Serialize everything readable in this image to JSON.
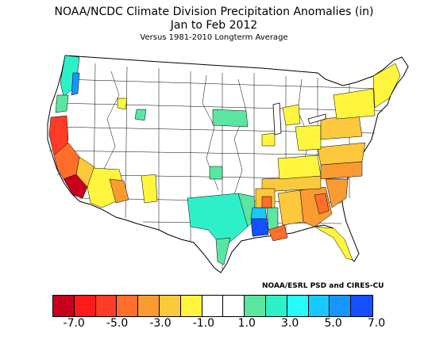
{
  "header": {
    "title": "NOAA/NCDC Climate Division Precipitation Anomalies (in)",
    "period": "Jan to Feb 2012",
    "baseline": "Versus 1981-2010 Longterm Average"
  },
  "credit": "NOAA/ESRL PSD and CIRES-CU",
  "legend": {
    "colors": [
      "#c8001e",
      "#ff1a1a",
      "#ff3c28",
      "#ff6e2a",
      "#fa9b32",
      "#fcc83c",
      "#fff53c",
      "#ffffff",
      "#ffffff",
      "#5ae6a0",
      "#2ef0c8",
      "#28fafa",
      "#18c8ff",
      "#1896ff",
      "#1450ff"
    ],
    "ticks": [
      "-7.0",
      "-5.0",
      "-3.0",
      "-1.0",
      "1.0",
      "3.0",
      "5.0",
      "7.0"
    ]
  },
  "anomaly_colors": {
    "dry_extreme": "#c8001e",
    "dry_severe": "#ff3c28",
    "dry_strong": "#ff6e2a",
    "dry_moderate": "#fa9b32",
    "dry_light": "#fcc83c",
    "dry_slight": "#fff53c",
    "wet_slight": "#5ae6a0",
    "wet_light": "#2ef0c8",
    "wet_moderate": "#28fafa",
    "wet_strong": "#18c8ff",
    "wet_severe": "#1450ff"
  }
}
